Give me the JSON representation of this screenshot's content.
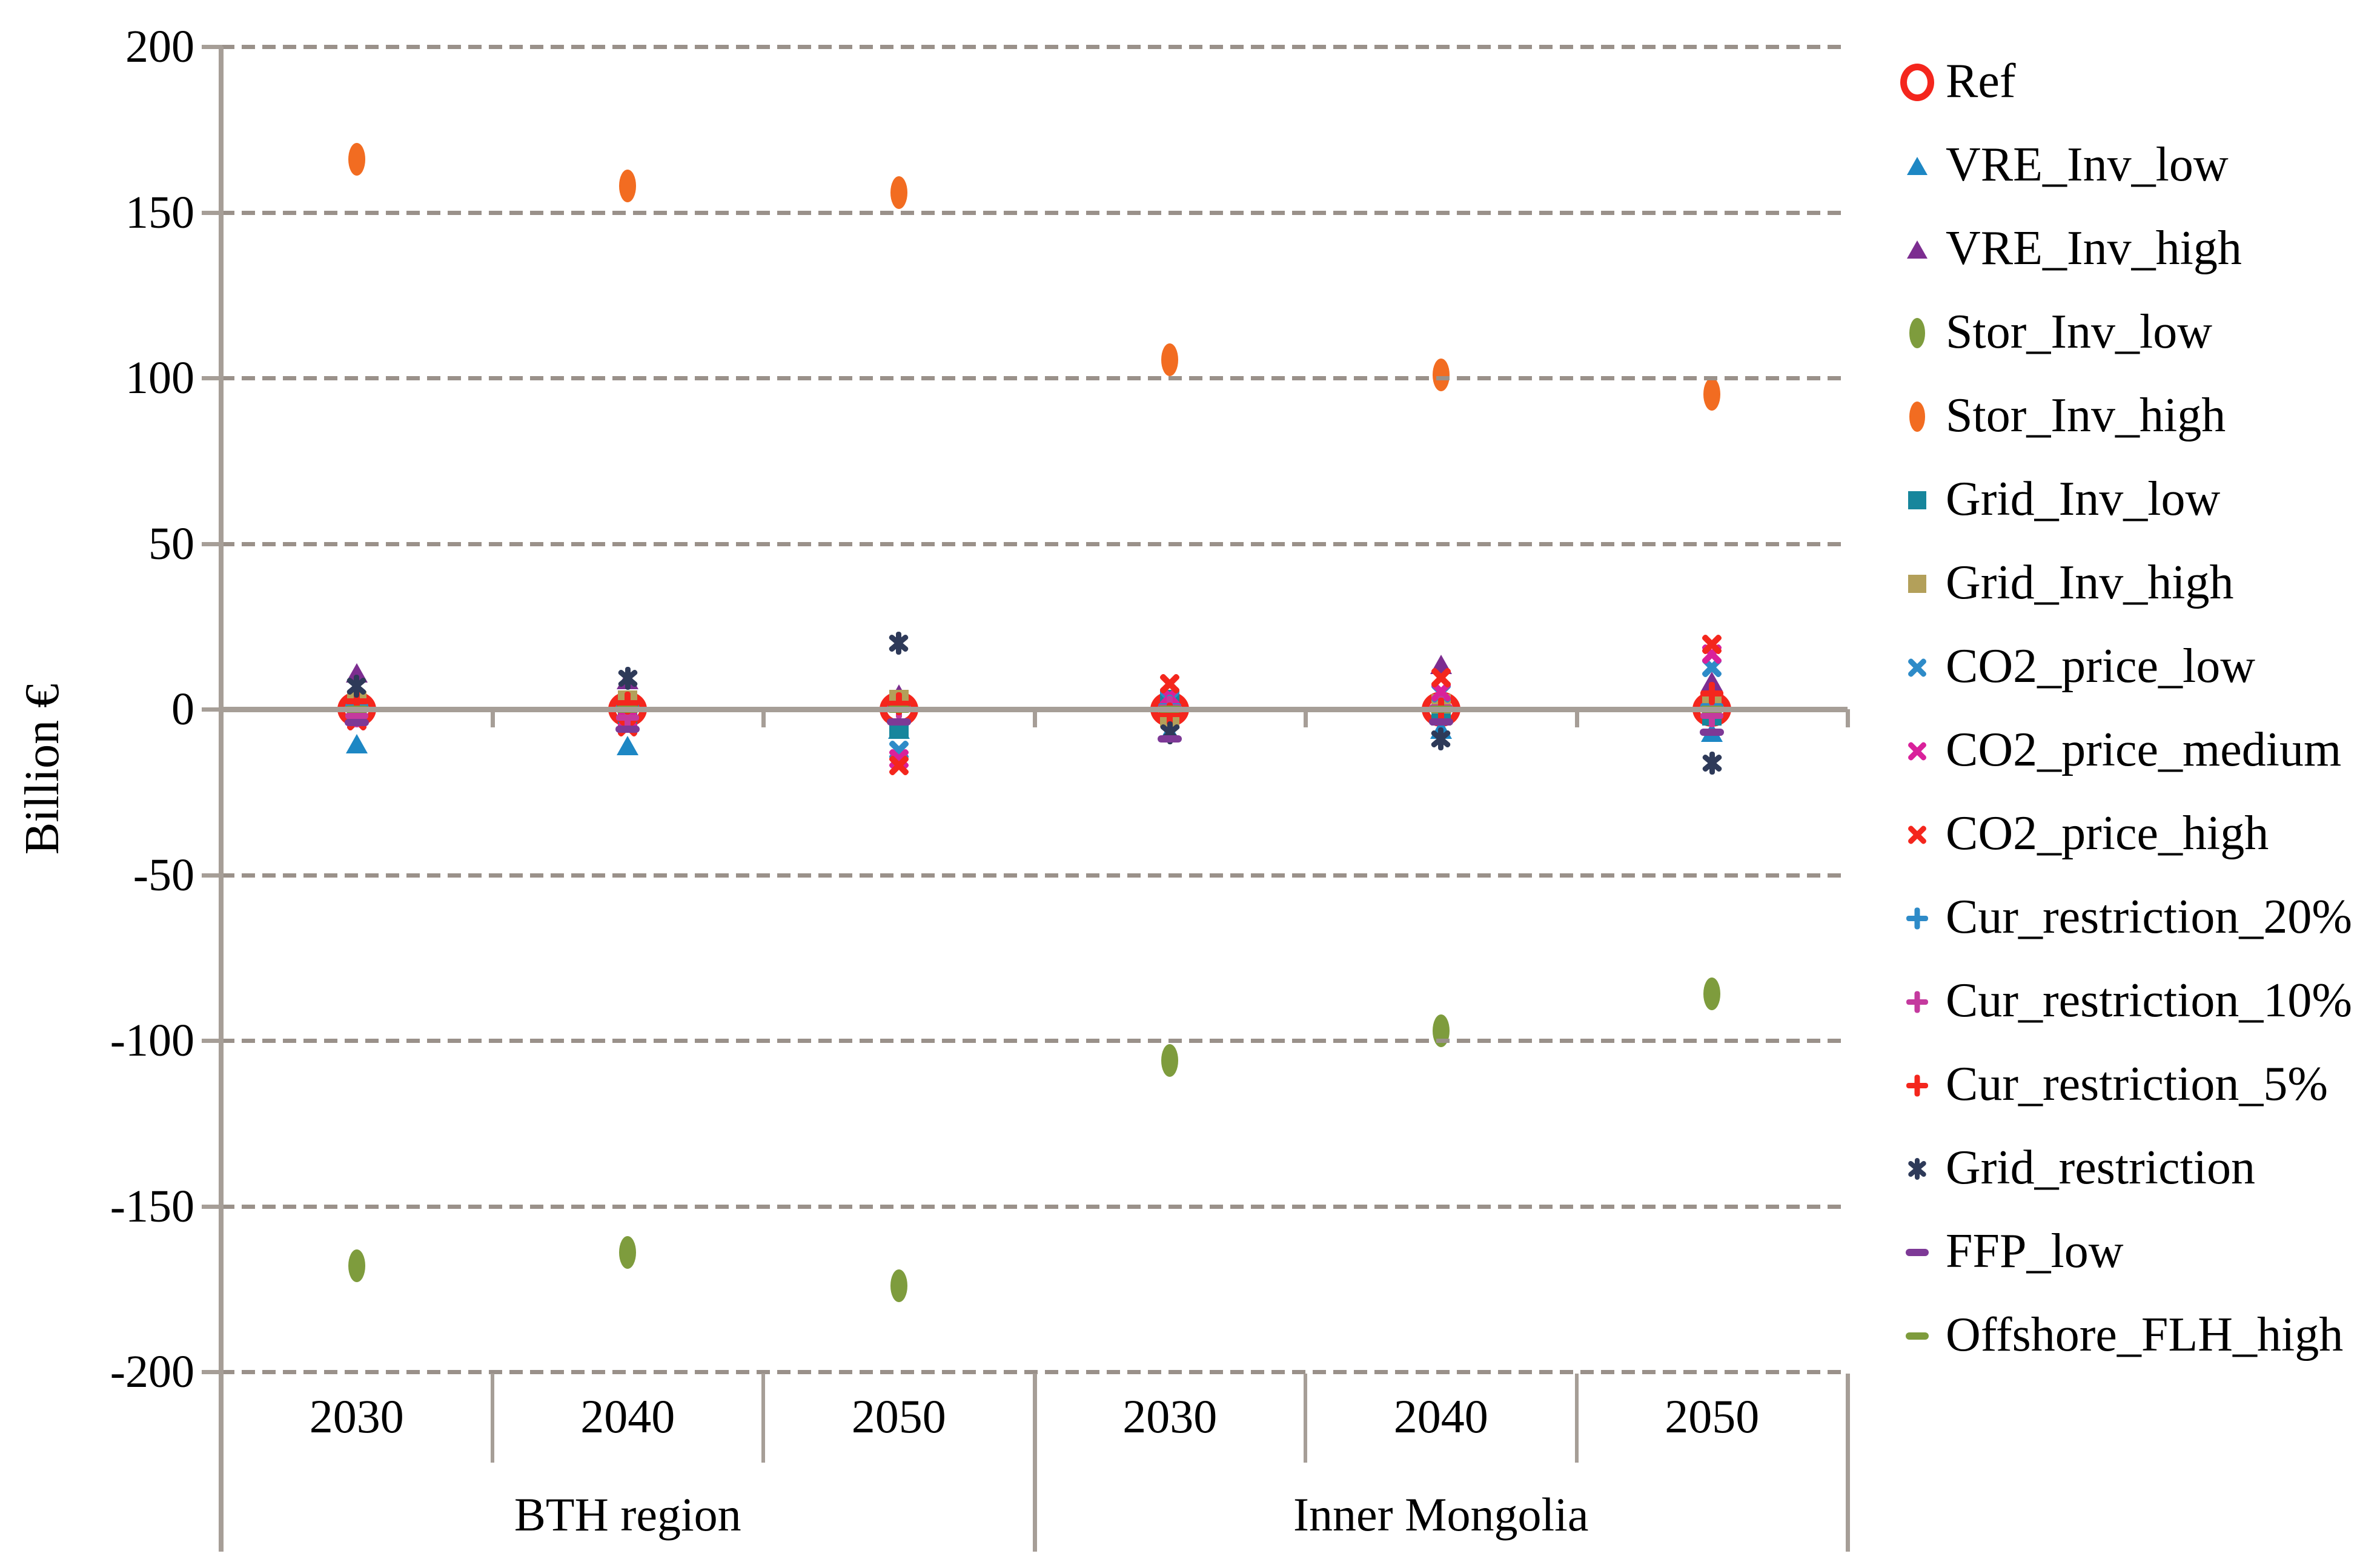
{
  "chart_data": {
    "type": "scatter",
    "title": "",
    "xlabel": "",
    "ylabel": "Billion €",
    "ylim": [
      -200,
      200
    ],
    "ytick_step": 50,
    "yticks": [
      "200",
      "150",
      "100",
      "50",
      "0",
      "-50",
      "-100",
      "-150",
      "-200"
    ],
    "grid": "dashed horizontal gridlines every 50, solid zero line",
    "legend_position": "right",
    "axis_color": "#a69e97",
    "grid_color": "#9a918a",
    "groups": [
      {
        "label": "BTH region",
        "years": [
          "2030",
          "2040",
          "2050"
        ]
      },
      {
        "label": "Inner Mongolia",
        "years": [
          "2030",
          "2040",
          "2050"
        ]
      }
    ],
    "categories": [
      "BTH 2030",
      "BTH 2040",
      "BTH 2050",
      "IM 2030",
      "IM 2040",
      "IM 2050"
    ],
    "series": [
      {
        "name": "Ref",
        "marker": "ring-icon",
        "color": "#f4261d",
        "values": [
          0,
          0,
          0,
          0,
          0,
          0
        ]
      },
      {
        "name": "VRE_Inv_low",
        "marker": "triangle-icon",
        "color": "#1d87c4",
        "values": [
          -10.5,
          -11,
          -6,
          -7,
          -6,
          -7
        ]
      },
      {
        "name": "VRE_Inv_high",
        "marker": "triangle-icon",
        "color": "#7c2d90",
        "values": [
          11,
          9,
          4.5,
          2,
          13.5,
          8.5
        ]
      },
      {
        "name": "Stor_Inv_low",
        "marker": "dot-icon",
        "color": "#7e9c3d",
        "values": [
          -168,
          -164,
          -174,
          -106,
          -97,
          -86
        ]
      },
      {
        "name": "Stor_Inv_high",
        "marker": "dot-icon",
        "color": "#f26c21",
        "values": [
          166,
          158,
          156,
          105.5,
          101,
          95
        ]
      },
      {
        "name": "Grid_Inv_low",
        "marker": "square-icon",
        "color": "#17869c",
        "values": [
          -2,
          -1.5,
          -6,
          3,
          -2,
          -2
        ]
      },
      {
        "name": "Grid_Inv_high",
        "marker": "square-icon",
        "color": "#b3a05a",
        "values": [
          2.5,
          2.8,
          3,
          -2.5,
          1.6,
          2.2
        ]
      },
      {
        "name": "CO2_price_low",
        "marker": "x-icon",
        "color": "#2e8bc8",
        "values": [
          -3.5,
          -4.2,
          -12.5,
          2.9,
          5,
          12.6
        ]
      },
      {
        "name": "CO2_price_medium",
        "marker": "x-icon",
        "color": "#d9219b",
        "values": [
          -3.5,
          -3,
          -15,
          3.9,
          5.3,
          16.6
        ]
      },
      {
        "name": "CO2_price_high",
        "marker": "x-icon",
        "color": "#f4261d",
        "values": [
          -3.5,
          -5.3,
          -17,
          7.7,
          9.5,
          19.6
        ]
      },
      {
        "name": "Cur_restriction_20%",
        "marker": "plus-icon",
        "color": "#2e8bc8",
        "values": [
          1,
          1,
          1,
          1,
          0.5,
          1
        ]
      },
      {
        "name": "Cur_restriction_10%",
        "marker": "plus-icon",
        "color": "#c43a9e",
        "values": [
          -2,
          -2.5,
          0.5,
          0.5,
          0.5,
          -2
        ]
      },
      {
        "name": "Cur_restriction_5%",
        "marker": "plus-icon",
        "color": "#f4261d",
        "values": [
          2.3,
          1.8,
          1.6,
          -1.5,
          0,
          4.8
        ]
      },
      {
        "name": "Grid_restriction",
        "marker": "asterisk-icon",
        "color": "#2e3a59",
        "values": [
          7,
          9.3,
          20,
          -7.1,
          -9,
          -16.3
        ]
      },
      {
        "name": "FFP_low",
        "marker": "dash-icon",
        "color": "#7d3996",
        "values": [
          -4,
          -6,
          -3.8,
          -9,
          -3.8,
          -6.9
        ]
      },
      {
        "name": "Offshore_FLH_high",
        "marker": "dash-icon",
        "color": "#7e9c3d",
        "values": [
          0,
          0,
          0,
          0,
          0,
          0
        ]
      }
    ]
  }
}
